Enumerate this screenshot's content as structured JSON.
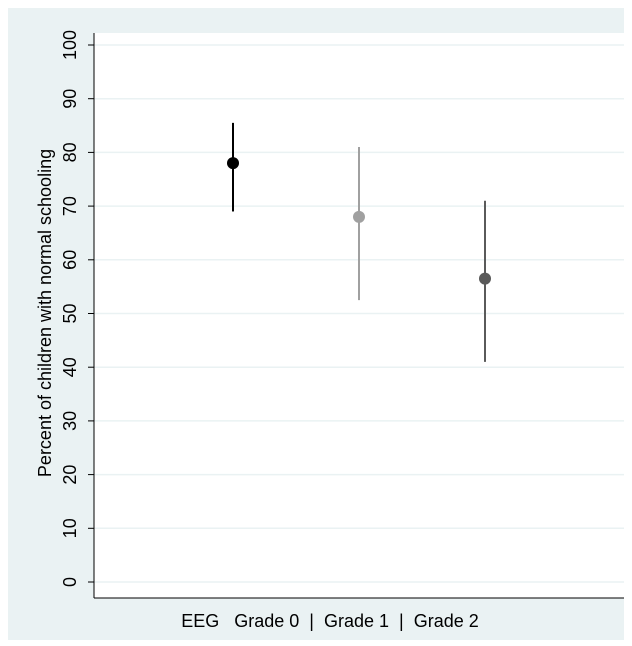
{
  "chart_data": {
    "type": "scatter",
    "subtype": "point-with-error-bars",
    "title": "",
    "xlabel": "EEG   Grade 0  |  Grade 1  |  Grade 2",
    "ylabel": "Percent of children with normal schooling",
    "ylim": [
      0,
      100
    ],
    "yticks": [
      "0",
      "10",
      "20",
      "30",
      "40",
      "50",
      "60",
      "70",
      "80",
      "90",
      "100"
    ],
    "grid": true,
    "legend": "none",
    "points": [
      {
        "category": "Grade 0",
        "value": 78,
        "lower": 69,
        "upper": 85.5,
        "color": "#000000"
      },
      {
        "category": "Grade 1",
        "value": 68,
        "lower": 52.5,
        "upper": 81,
        "color": "#a0a0a0"
      },
      {
        "category": "Grade 2",
        "value": 56.5,
        "lower": 41,
        "upper": 71,
        "color": "#5a5a5a"
      }
    ],
    "colors": {
      "outer_background": "#eaf2f3",
      "plot_background": "#ffffff",
      "gridline": "#eaf2f3",
      "axis": "#000000"
    }
  }
}
